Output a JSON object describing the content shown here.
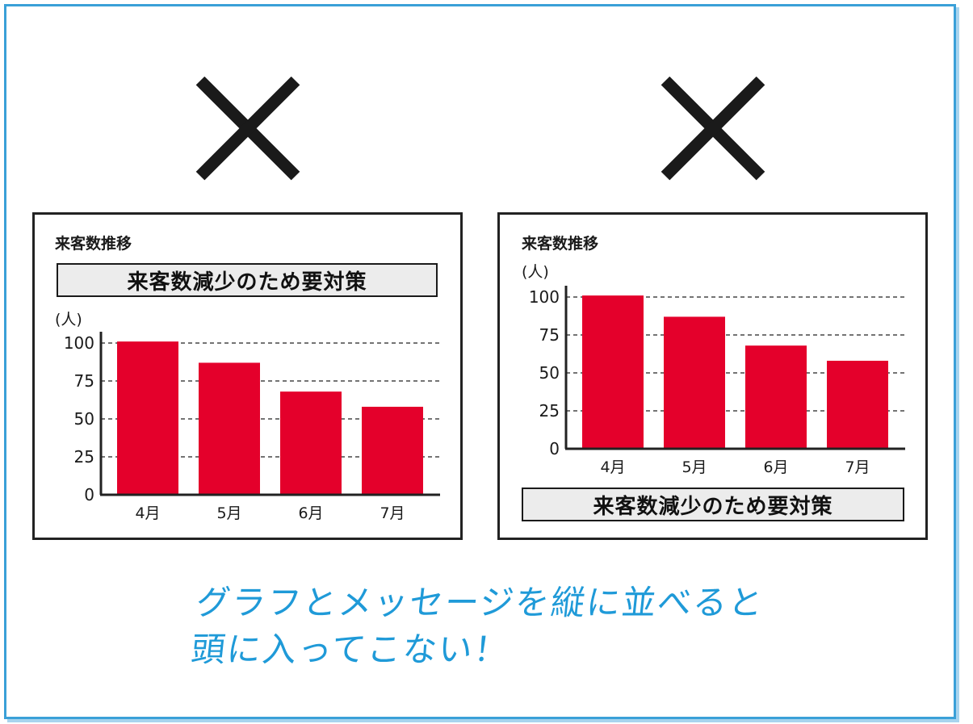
{
  "panels": [
    {
      "title": "来客数推移",
      "message": "来客数減少のため要対策",
      "unit": "(人)"
    },
    {
      "title": "来客数推移",
      "message": "来客数減少のため要対策",
      "unit": "(人)"
    }
  ],
  "caption": {
    "line1": "グラフとメッセージを縦に並べると",
    "line2": "頭に入ってこない！"
  },
  "colors": {
    "bar": "#e4002b",
    "frame": "#3aa0d8",
    "caption": "#1f9ad8",
    "cross": "#1a1a1a"
  },
  "icons": [
    "cross-mark-icon",
    "cross-mark-icon"
  ],
  "chart_data": [
    {
      "type": "bar",
      "categories": [
        "4月",
        "5月",
        "6月",
        "7月"
      ],
      "values": [
        101,
        87,
        68,
        58
      ],
      "ylabel": "(人)",
      "ylim": [
        0,
        100
      ],
      "yticks": [
        0,
        25,
        50,
        75,
        100
      ],
      "grid": "dashed horizontal"
    },
    {
      "type": "bar",
      "categories": [
        "4月",
        "5月",
        "6月",
        "7月"
      ],
      "values": [
        101,
        87,
        68,
        58
      ],
      "ylabel": "(人)",
      "ylim": [
        0,
        100
      ],
      "yticks": [
        0,
        25,
        50,
        75,
        100
      ],
      "grid": "dashed horizontal"
    }
  ]
}
